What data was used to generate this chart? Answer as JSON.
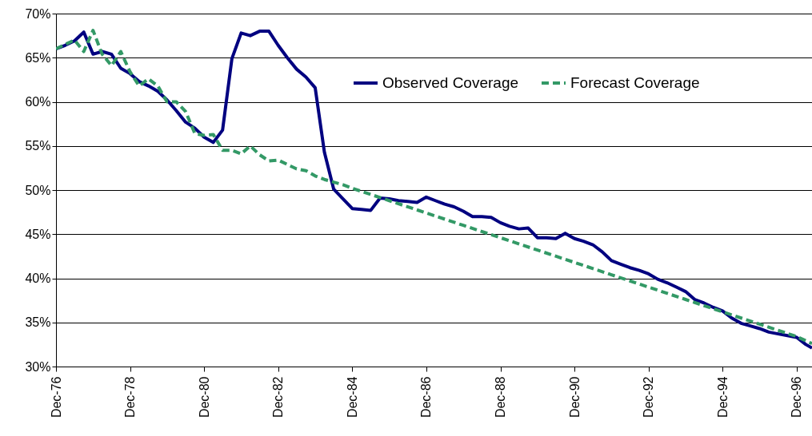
{
  "chart_data": {
    "type": "line",
    "xlim": [
      "1976-12",
      "1997-05"
    ],
    "xticks": [
      {
        "value": "1976-12",
        "label": "Dec-76"
      },
      {
        "value": "1978-12",
        "label": "Dec-78"
      },
      {
        "value": "1980-12",
        "label": "Dec-80"
      },
      {
        "value": "1982-12",
        "label": "Dec-82"
      },
      {
        "value": "1984-12",
        "label": "Dec-84"
      },
      {
        "value": "1986-12",
        "label": "Dec-86"
      },
      {
        "value": "1988-12",
        "label": "Dec-88"
      },
      {
        "value": "1990-12",
        "label": "Dec-90"
      },
      {
        "value": "1992-12",
        "label": "Dec-92"
      },
      {
        "value": "1994-12",
        "label": "Dec-94"
      },
      {
        "value": "1996-12",
        "label": "Dec-96"
      }
    ],
    "ylim": [
      30,
      70
    ],
    "yticks": [
      {
        "value": 30,
        "label": "30%"
      },
      {
        "value": 35,
        "label": "35%"
      },
      {
        "value": 40,
        "label": "40%"
      },
      {
        "value": 45,
        "label": "45%"
      },
      {
        "value": 50,
        "label": "50%"
      },
      {
        "value": 55,
        "label": "55%"
      },
      {
        "value": 60,
        "label": "60%"
      },
      {
        "value": 65,
        "label": "65%"
      },
      {
        "value": 70,
        "label": "70%"
      }
    ],
    "grid": "y",
    "legend": "top right",
    "series": [
      {
        "name": "Observed Coverage",
        "color": "#000080",
        "line_style": "solid",
        "x": [
          "1976-12",
          "1977-03",
          "1977-06",
          "1977-09",
          "1977-12",
          "1978-03",
          "1978-06",
          "1978-09",
          "1978-12",
          "1979-03",
          "1979-06",
          "1979-09",
          "1979-12",
          "1980-03",
          "1980-06",
          "1980-09",
          "1980-12",
          "1981-03",
          "1981-06",
          "1981-09",
          "1981-12",
          "1982-03",
          "1982-06",
          "1982-09",
          "1982-12",
          "1983-03",
          "1983-06",
          "1983-09",
          "1983-12",
          "1984-03",
          "1984-06",
          "1984-09",
          "1984-12",
          "1985-03",
          "1985-06",
          "1985-09",
          "1985-12",
          "1986-03",
          "1986-06",
          "1986-09",
          "1986-12",
          "1987-03",
          "1987-06",
          "1987-09",
          "1987-12",
          "1988-03",
          "1988-06",
          "1988-09",
          "1988-12",
          "1989-03",
          "1989-06",
          "1989-09",
          "1989-12",
          "1990-03",
          "1990-06",
          "1990-09",
          "1990-12",
          "1991-03",
          "1991-06",
          "1991-09",
          "1991-12",
          "1992-03",
          "1992-06",
          "1992-09",
          "1992-12",
          "1993-03",
          "1993-06",
          "1993-09",
          "1993-12",
          "1994-03",
          "1994-06",
          "1994-09",
          "1994-12",
          "1995-03",
          "1995-06",
          "1995-09",
          "1995-12",
          "1996-03",
          "1996-06",
          "1996-09",
          "1996-12",
          "1997-03",
          "1997-05"
        ],
        "values": [
          66.0,
          66.4,
          66.9,
          67.9,
          65.4,
          65.7,
          65.4,
          63.8,
          63.2,
          62.3,
          61.8,
          61.2,
          60.2,
          59.0,
          57.7,
          57.0,
          56.0,
          55.4,
          56.8,
          64.9,
          67.8,
          67.5,
          68.0,
          68.0,
          66.4,
          65.0,
          63.7,
          62.8,
          61.6,
          54.3,
          50.1,
          49.0,
          47.9,
          47.8,
          47.7,
          49.1,
          49.0,
          48.8,
          48.7,
          48.6,
          49.2,
          48.8,
          48.4,
          48.1,
          47.6,
          47.0,
          47.0,
          46.9,
          46.3,
          45.9,
          45.6,
          45.7,
          44.6,
          44.6,
          44.5,
          45.1,
          44.5,
          44.2,
          43.8,
          43.0,
          42.0,
          41.6,
          41.2,
          40.9,
          40.5,
          39.9,
          39.5,
          39.0,
          38.5,
          37.6,
          37.2,
          36.7,
          36.3,
          35.5,
          34.9,
          34.6,
          34.3,
          33.9,
          33.7,
          33.5,
          33.3,
          32.5,
          32.1
        ]
      },
      {
        "name": "Forecast Coverage",
        "color": "#339966",
        "line_style": "dashed",
        "x": [
          "1976-12",
          "1977-03",
          "1977-06",
          "1977-09",
          "1977-12",
          "1978-03",
          "1978-06",
          "1978-09",
          "1978-12",
          "1979-03",
          "1979-06",
          "1979-09",
          "1979-12",
          "1980-03",
          "1980-06",
          "1980-09",
          "1980-12",
          "1981-03",
          "1981-06",
          "1981-09",
          "1981-12",
          "1982-03",
          "1982-06",
          "1982-09",
          "1982-12",
          "1983-03",
          "1983-06",
          "1983-09",
          "1983-12",
          "1984-03",
          "1984-06",
          "1984-09",
          "1984-12",
          "1985-12",
          "1986-12",
          "1987-12",
          "1988-12",
          "1989-12",
          "1990-12",
          "1991-12",
          "1992-12",
          "1993-12",
          "1994-12",
          "1995-12",
          "1996-12",
          "1997-05"
        ],
        "values": [
          66.0,
          66.5,
          67.0,
          65.7,
          68.1,
          65.4,
          64.1,
          65.7,
          63.4,
          61.8,
          62.6,
          61.8,
          60.0,
          60.0,
          58.9,
          56.4,
          56.2,
          56.3,
          54.5,
          54.5,
          54.1,
          55.0,
          54.0,
          53.3,
          53.4,
          52.9,
          52.4,
          52.2,
          51.6,
          51.2,
          50.9,
          50.6,
          50.2,
          48.8,
          47.4,
          46.0,
          44.6,
          43.2,
          41.8,
          40.4,
          39.0,
          37.6,
          36.2,
          34.8,
          33.4,
          32.6
        ]
      }
    ]
  }
}
